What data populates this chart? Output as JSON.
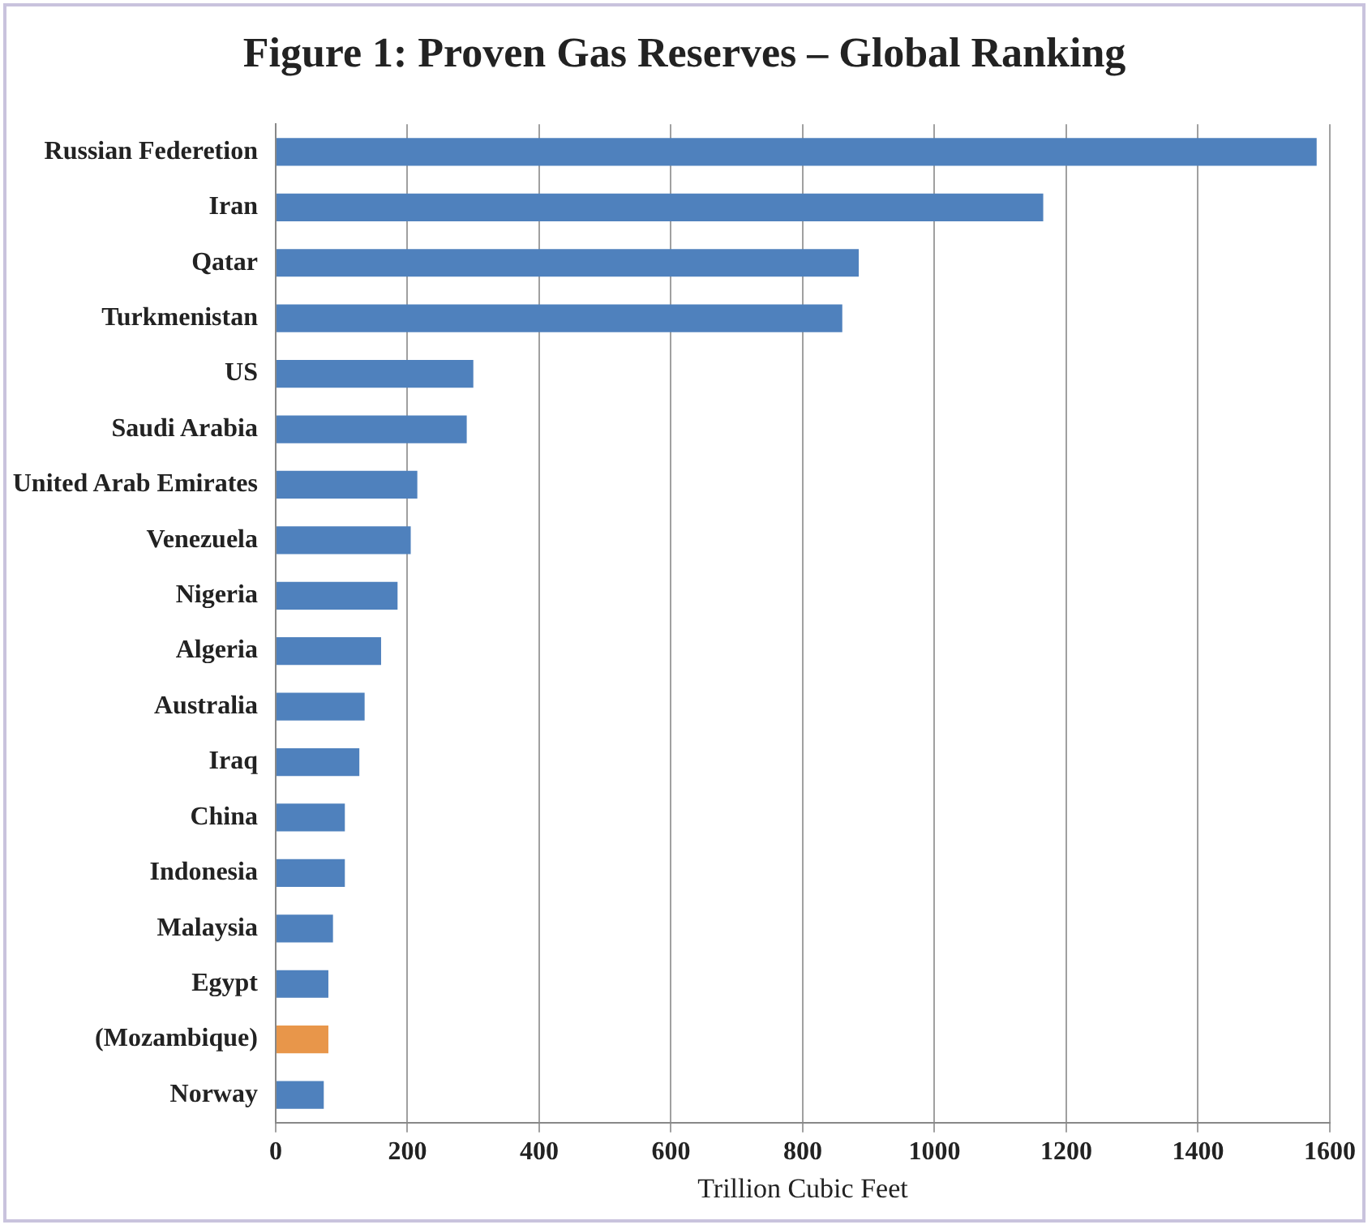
{
  "chart_data": {
    "type": "bar",
    "orientation": "horizontal",
    "title": "Figure 1: Proven Gas Reserves – Global Ranking",
    "xlabel": "Trillion Cubic Feet",
    "categories": [
      "Russian Federetion",
      "Iran",
      "Qatar",
      "Turkmenistan",
      "US",
      "Saudi Arabia",
      "United Arab Emirates",
      "Venezuela",
      "Nigeria",
      "Algeria",
      "Australia",
      "Iraq",
      "China",
      "Indonesia",
      "Malaysia",
      "Egypt",
      "(Mozambique)",
      "Norway"
    ],
    "values": [
      1580,
      1165,
      885,
      860,
      300,
      290,
      215,
      205,
      185,
      160,
      135,
      127,
      105,
      105,
      87,
      80,
      80,
      73
    ],
    "colors": [
      "#4f81bd",
      "#4f81bd",
      "#4f81bd",
      "#4f81bd",
      "#4f81bd",
      "#4f81bd",
      "#4f81bd",
      "#4f81bd",
      "#4f81bd",
      "#4f81bd",
      "#4f81bd",
      "#4f81bd",
      "#4f81bd",
      "#4f81bd",
      "#4f81bd",
      "#4f81bd",
      "#e8964a",
      "#4f81bd"
    ],
    "xlim": [
      0,
      1600
    ],
    "xticks": [
      0,
      200,
      400,
      600,
      800,
      1000,
      1200,
      1400,
      1600
    ],
    "grid": "x",
    "legend": false
  }
}
